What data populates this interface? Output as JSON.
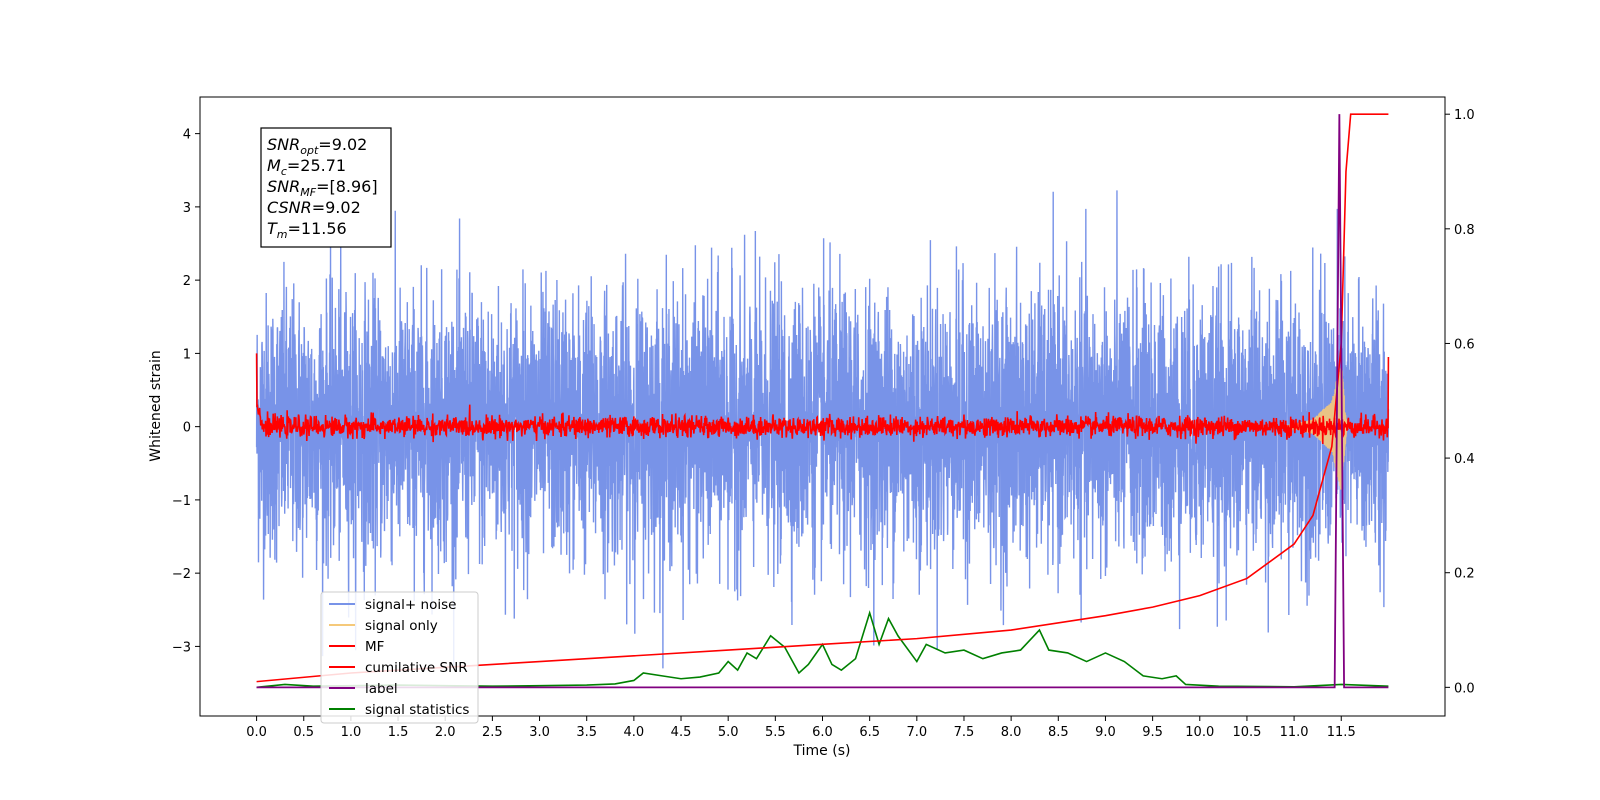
{
  "chart_data": {
    "type": "line",
    "xlabel": "Time (s)",
    "ylabel": "Whitened strain",
    "xlim": [
      -0.6,
      12.6
    ],
    "ylim": [
      -3.95,
      4.5
    ],
    "y2lim": [
      -0.05,
      1.03
    ],
    "x_ticks": [
      "0.0",
      "0.5",
      "1.0",
      "1.5",
      "2.0",
      "2.5",
      "3.0",
      "3.5",
      "4.0",
      "4.5",
      "5.0",
      "5.5",
      "6.0",
      "6.5",
      "7.0",
      "7.5",
      "8.0",
      "8.5",
      "9.0",
      "9.5",
      "10.0",
      "10.5",
      "11.0",
      "11.5"
    ],
    "y_ticks": [
      "4",
      "3",
      "2",
      "1",
      "0",
      "−1",
      "−2",
      "−3"
    ],
    "y2_ticks": [
      "1.0",
      "0.8",
      "0.6",
      "0.4",
      "0.2",
      "0.0"
    ],
    "annotation": [
      {
        "label": "SNR",
        "sub": "opt",
        "value": "=9.02"
      },
      {
        "label": "M",
        "sub": "c",
        "value": "=25.71"
      },
      {
        "label": "SNR",
        "sub": "MF",
        "value": "=[8.96]"
      },
      {
        "label": "CSNR",
        "sub": "",
        "value": "=9.02"
      },
      {
        "label": "T",
        "sub": "m",
        "value": "=11.56"
      }
    ],
    "series": [
      {
        "name": "signal+ noise",
        "color": "#7893e8",
        "axis": "left",
        "description_values": "white noise, std ~0.9, range [-3.3, 4.2]"
      },
      {
        "name": "signal only",
        "color": "#f5c97a",
        "axis": "left",
        "points": [
          [
            10.9,
            0
          ],
          [
            11.2,
            0.1
          ],
          [
            11.4,
            0.35
          ],
          [
            11.5,
            0.9
          ],
          [
            11.56,
            0
          ]
        ]
      },
      {
        "name": "MF",
        "color": "#ff0000",
        "axis": "left",
        "description_values": "noise around 0, std ~0.08, start 1.0, end 0.95"
      },
      {
        "name": "cumilative SNR",
        "color": "#ff0000",
        "axis": "right",
        "points": [
          [
            0,
            0.01
          ],
          [
            1,
            0.025
          ],
          [
            2,
            0.035
          ],
          [
            3,
            0.045
          ],
          [
            4,
            0.055
          ],
          [
            5,
            0.065
          ],
          [
            6,
            0.075
          ],
          [
            7,
            0.085
          ],
          [
            8,
            0.1
          ],
          [
            9,
            0.125
          ],
          [
            9.5,
            0.14
          ],
          [
            10,
            0.16
          ],
          [
            10.5,
            0.19
          ],
          [
            11,
            0.25
          ],
          [
            11.2,
            0.3
          ],
          [
            11.4,
            0.42
          ],
          [
            11.5,
            0.6
          ],
          [
            11.55,
            0.9
          ],
          [
            11.6,
            1.0
          ],
          [
            12.0,
            1.0
          ]
        ]
      },
      {
        "name": "label",
        "color": "#800080",
        "axis": "right",
        "points": [
          [
            0,
            0
          ],
          [
            11.43,
            0
          ],
          [
            11.48,
            1.0
          ],
          [
            11.53,
            0
          ],
          [
            12.0,
            0
          ]
        ]
      },
      {
        "name": "signal statistics",
        "color": "#008000",
        "axis": "right",
        "points": [
          [
            0,
            0
          ],
          [
            0.3,
            0.005
          ],
          [
            0.6,
            0.002
          ],
          [
            1,
            0.003
          ],
          [
            1.5,
            0.004
          ],
          [
            2,
            0.003
          ],
          [
            2.5,
            0.002
          ],
          [
            3,
            0.003
          ],
          [
            3.5,
            0.004
          ],
          [
            3.8,
            0.006
          ],
          [
            4.0,
            0.012
          ],
          [
            4.1,
            0.025
          ],
          [
            4.3,
            0.02
          ],
          [
            4.5,
            0.015
          ],
          [
            4.7,
            0.018
          ],
          [
            4.9,
            0.025
          ],
          [
            5.0,
            0.045
          ],
          [
            5.1,
            0.03
          ],
          [
            5.2,
            0.06
          ],
          [
            5.3,
            0.05
          ],
          [
            5.45,
            0.09
          ],
          [
            5.6,
            0.07
          ],
          [
            5.75,
            0.025
          ],
          [
            5.85,
            0.04
          ],
          [
            6.0,
            0.075
          ],
          [
            6.1,
            0.04
          ],
          [
            6.2,
            0.03
          ],
          [
            6.35,
            0.05
          ],
          [
            6.5,
            0.13
          ],
          [
            6.6,
            0.075
          ],
          [
            6.7,
            0.12
          ],
          [
            6.8,
            0.09
          ],
          [
            7.0,
            0.045
          ],
          [
            7.1,
            0.075
          ],
          [
            7.3,
            0.06
          ],
          [
            7.5,
            0.065
          ],
          [
            7.7,
            0.05
          ],
          [
            7.9,
            0.06
          ],
          [
            8.1,
            0.065
          ],
          [
            8.3,
            0.1
          ],
          [
            8.4,
            0.065
          ],
          [
            8.6,
            0.06
          ],
          [
            8.8,
            0.045
          ],
          [
            9.0,
            0.06
          ],
          [
            9.2,
            0.045
          ],
          [
            9.4,
            0.02
          ],
          [
            9.6,
            0.015
          ],
          [
            9.75,
            0.02
          ],
          [
            9.85,
            0.005
          ],
          [
            10.2,
            0.002
          ],
          [
            11.0,
            0.001
          ],
          [
            11.5,
            0.005
          ],
          [
            12.0,
            0.002
          ]
        ]
      }
    ],
    "legend": {
      "placement": "lower-left"
    }
  }
}
